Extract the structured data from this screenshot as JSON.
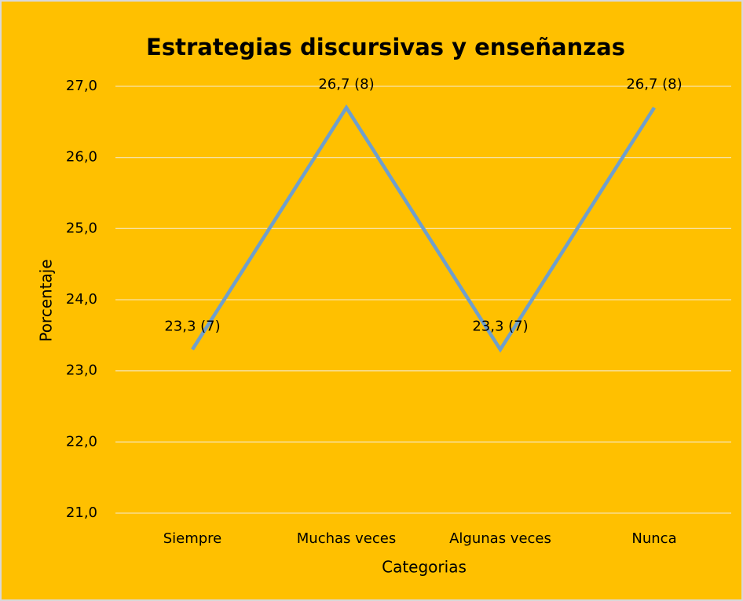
{
  "chart_data": {
    "type": "line",
    "title": "Estrategias discursivas y enseñanzas",
    "xlabel": "Categorias",
    "ylabel": "Porcentaje",
    "categories": [
      "Siempre",
      "Muchas veces",
      "Algunas veces",
      "Nunca"
    ],
    "values": [
      23.3,
      26.7,
      23.3,
      26.7
    ],
    "value_labels": [
      "23,3 (7)",
      "26,7 (8)",
      "23,3 (7)",
      "26,7 (8)"
    ],
    "color": "#6f9fcc",
    "ylim": [
      21,
      27
    ],
    "yticks": [
      {
        "value": 21,
        "label": "21,0"
      },
      {
        "value": 22,
        "label": "22,0"
      },
      {
        "value": 23,
        "label": "23,0"
      },
      {
        "value": 24,
        "label": "24,0"
      },
      {
        "value": 25,
        "label": "25,0"
      },
      {
        "value": 26,
        "label": "26,0"
      },
      {
        "value": 27,
        "label": "27,0"
      }
    ],
    "grid": true
  }
}
